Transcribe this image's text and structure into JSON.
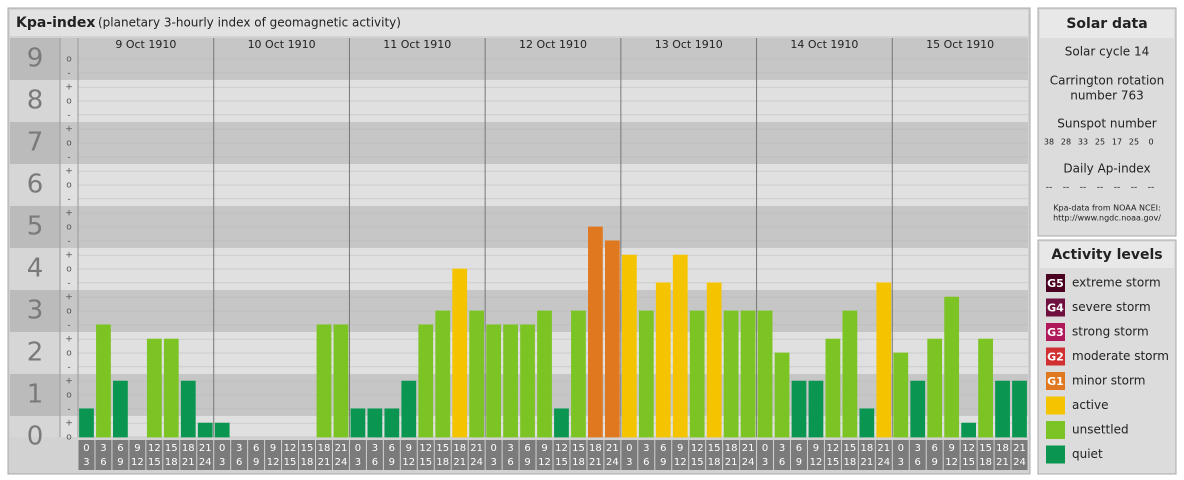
{
  "chart_data": {
    "type": "bar",
    "title": "Kpa-index",
    "subtitle": "(planetary 3-hourly index of geomagnetic activity)",
    "ylim": [
      0,
      9.5
    ],
    "yticks": [
      0,
      1,
      2,
      3,
      4,
      5,
      6,
      7,
      8,
      9
    ],
    "minor_yticks": [
      {
        "value": 0,
        "label": "o"
      },
      {
        "value": 0.33,
        "label": "+"
      },
      {
        "value": 0.67,
        "label": "-"
      },
      {
        "value": 1,
        "label": "o"
      },
      {
        "value": 1.33,
        "label": "+"
      },
      {
        "value": 1.67,
        "label": "-"
      },
      {
        "value": 2,
        "label": "o"
      },
      {
        "value": 2.33,
        "label": "+"
      },
      {
        "value": 2.67,
        "label": "-"
      },
      {
        "value": 3,
        "label": "o"
      },
      {
        "value": 3.33,
        "label": "+"
      },
      {
        "value": 3.67,
        "label": "-"
      },
      {
        "value": 4,
        "label": "o"
      },
      {
        "value": 4.33,
        "label": "+"
      },
      {
        "value": 4.67,
        "label": "-"
      },
      {
        "value": 5,
        "label": "o"
      },
      {
        "value": 5.33,
        "label": "+"
      },
      {
        "value": 5.67,
        "label": "-"
      },
      {
        "value": 6,
        "label": "o"
      },
      {
        "value": 6.33,
        "label": "+"
      },
      {
        "value": 6.67,
        "label": "-"
      },
      {
        "value": 7,
        "label": "o"
      },
      {
        "value": 7.33,
        "label": "+"
      },
      {
        "value": 7.67,
        "label": "-"
      },
      {
        "value": 8,
        "label": "o"
      },
      {
        "value": 8.33,
        "label": "+"
      },
      {
        "value": 8.67,
        "label": "-"
      },
      {
        "value": 9,
        "label": "o"
      }
    ],
    "slots": [
      {
        "start": 0,
        "end": 3
      },
      {
        "start": 3,
        "end": 6
      },
      {
        "start": 6,
        "end": 9
      },
      {
        "start": 9,
        "end": 12
      },
      {
        "start": 12,
        "end": 15
      },
      {
        "start": 15,
        "end": 18
      },
      {
        "start": 18,
        "end": 21
      },
      {
        "start": 21,
        "end": 24
      }
    ],
    "days": [
      {
        "label": "9 Oct 1910",
        "values": [
          0.67,
          2.67,
          1.33,
          0,
          2.33,
          2.33,
          1.33,
          0.33
        ],
        "colors": [
          "#0a9650",
          "#7cc424",
          "#0a9650",
          "#0a9650",
          "#7cc424",
          "#7cc424",
          "#0a9650",
          "#0a9650"
        ]
      },
      {
        "label": "10 Oct 1910",
        "values": [
          0.33,
          0,
          0,
          0,
          0,
          0,
          2.67,
          2.67
        ],
        "colors": [
          "#0a9650",
          "#0a9650",
          "#0a9650",
          "#0a9650",
          "#0a9650",
          "#0a9650",
          "#7cc424",
          "#7cc424"
        ]
      },
      {
        "label": "11 Oct 1910",
        "values": [
          0.67,
          0.67,
          0.67,
          1.33,
          2.67,
          3,
          4,
          3
        ],
        "colors": [
          "#0a9650",
          "#0a9650",
          "#0a9650",
          "#0a9650",
          "#7cc424",
          "#7cc424",
          "#f5c400",
          "#7cc424"
        ]
      },
      {
        "label": "12 Oct 1910",
        "values": [
          2.67,
          2.67,
          2.67,
          3,
          0.67,
          3,
          5,
          4.67
        ],
        "colors": [
          "#7cc424",
          "#7cc424",
          "#7cc424",
          "#7cc424",
          "#0a9650",
          "#7cc424",
          "#e07820",
          "#e07820"
        ]
      },
      {
        "label": "13 Oct 1910",
        "values": [
          4.33,
          3,
          3.67,
          4.33,
          3,
          3.67,
          3,
          3
        ],
        "colors": [
          "#f5c400",
          "#7cc424",
          "#f5c400",
          "#f5c400",
          "#7cc424",
          "#f5c400",
          "#7cc424",
          "#7cc424"
        ]
      },
      {
        "label": "14 Oct 1910",
        "values": [
          3,
          2,
          1.33,
          1.33,
          2.33,
          3,
          0.67,
          3.67
        ],
        "colors": [
          "#7cc424",
          "#7cc424",
          "#0a9650",
          "#0a9650",
          "#7cc424",
          "#7cc424",
          "#0a9650",
          "#f5c400"
        ]
      },
      {
        "label": "15 Oct 1910",
        "values": [
          2,
          1.33,
          2.33,
          3.33,
          0.33,
          2.33,
          1.33,
          1.33
        ],
        "colors": [
          "#7cc424",
          "#0a9650",
          "#7cc424",
          "#7cc424",
          "#0a9650",
          "#7cc424",
          "#0a9650",
          "#0a9650"
        ]
      }
    ]
  },
  "solar_data": {
    "title": "Solar data",
    "cycle": "Solar cycle 14",
    "rotation": [
      "Carrington rotation",
      "number 763"
    ],
    "sunspot_title": "Sunspot number",
    "sunspot_values": [
      38,
      28,
      33,
      25,
      17,
      25,
      0
    ],
    "ap_title": "Daily Ap-index",
    "ap_values": [
      "--",
      "--",
      "--",
      "--",
      "--",
      "--",
      "--"
    ],
    "source": [
      "Kpa-data from NOAA NCEI:",
      "http://www.ngdc.noaa.gov/"
    ]
  },
  "activity_levels": {
    "title": "Activity levels",
    "levels": [
      {
        "badge": "G5",
        "label": "extreme storm",
        "color": "#4a0020"
      },
      {
        "badge": "G4",
        "label": "severe storm",
        "color": "#6e1040"
      },
      {
        "badge": "G3",
        "label": "strong storm",
        "color": "#b0185a"
      },
      {
        "badge": "G2",
        "label": "moderate storm",
        "color": "#d03030"
      },
      {
        "badge": "G1",
        "label": "minor storm",
        "color": "#e07820"
      },
      {
        "badge": null,
        "label": "active",
        "color": "#f5c400"
      },
      {
        "badge": null,
        "label": "unsettled",
        "color": "#7cc424"
      },
      {
        "badge": null,
        "label": "quiet",
        "color": "#0a9650"
      }
    ]
  }
}
